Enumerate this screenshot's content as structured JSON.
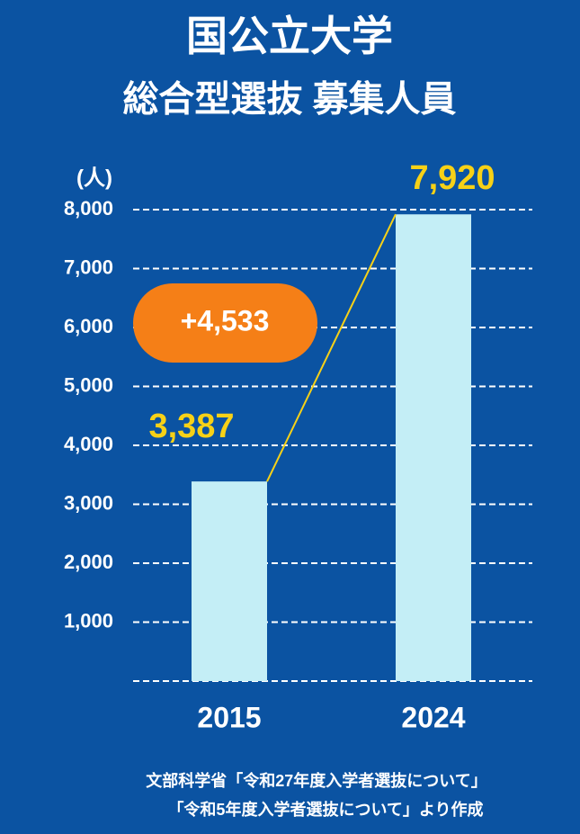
{
  "chart_data": {
    "type": "bar",
    "title": "国公立大学",
    "subtitle": "総合型選抜 募集人員",
    "y_label": "(人)",
    "categories": [
      "2015",
      "2024"
    ],
    "values": [
      3387,
      7920
    ],
    "value_labels": [
      "3,387",
      "7,920"
    ],
    "color": "#c4eef6",
    "label_color": "#f7d117",
    "annotation": "+4,533",
    "annotation_color": "#f57f17",
    "ylim": [
      0,
      8000
    ],
    "yticks": [
      {
        "value": 1000,
        "label": "1,000"
      },
      {
        "value": 2000,
        "label": "2,000"
      },
      {
        "value": 3000,
        "label": "3,000"
      },
      {
        "value": 4000,
        "label": "4,000"
      },
      {
        "value": 5000,
        "label": "5,000"
      },
      {
        "value": 6000,
        "label": "6,000"
      },
      {
        "value": 7000,
        "label": "7,000"
      },
      {
        "value": 8000,
        "label": "8,000"
      }
    ],
    "grid": true,
    "source": [
      "文部科学省「令和27年度入学者選抜について」",
      "「令和5年度入学者選抜について」より作成"
    ]
  }
}
